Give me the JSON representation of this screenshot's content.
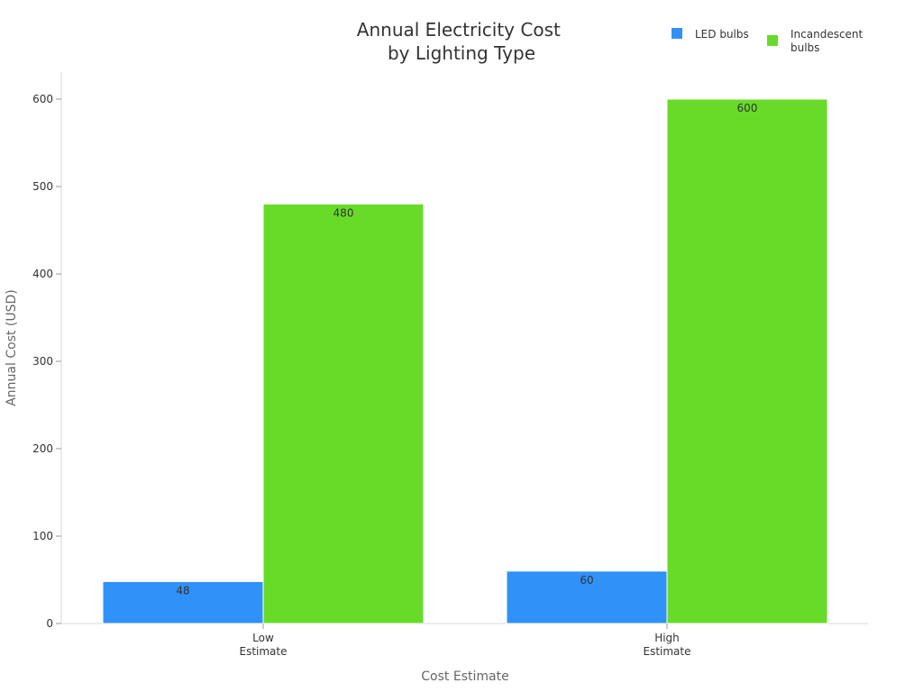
{
  "chart_data": {
    "type": "bar",
    "title": [
      "Annual Electricity Cost",
      "by Lighting Type"
    ],
    "categories": [
      [
        "Low",
        "Estimate"
      ],
      [
        "High",
        "Estimate"
      ]
    ],
    "series": [
      {
        "name": "LED bulbs",
        "values": [
          48,
          60
        ],
        "color": "#3092f7"
      },
      {
        "name": "Incandescent bulbs",
        "name_lines": [
          "Incandescent",
          "bulbs"
        ],
        "values": [
          480,
          600
        ],
        "color": "#68db28"
      }
    ],
    "xlabel": "Cost Estimate",
    "ylabel": "Annual Cost (USD)",
    "ylim": [
      0,
      630
    ],
    "yticks": [
      0,
      100,
      200,
      300,
      400,
      500,
      600
    ],
    "grid": false,
    "legend_position": "top-right"
  }
}
